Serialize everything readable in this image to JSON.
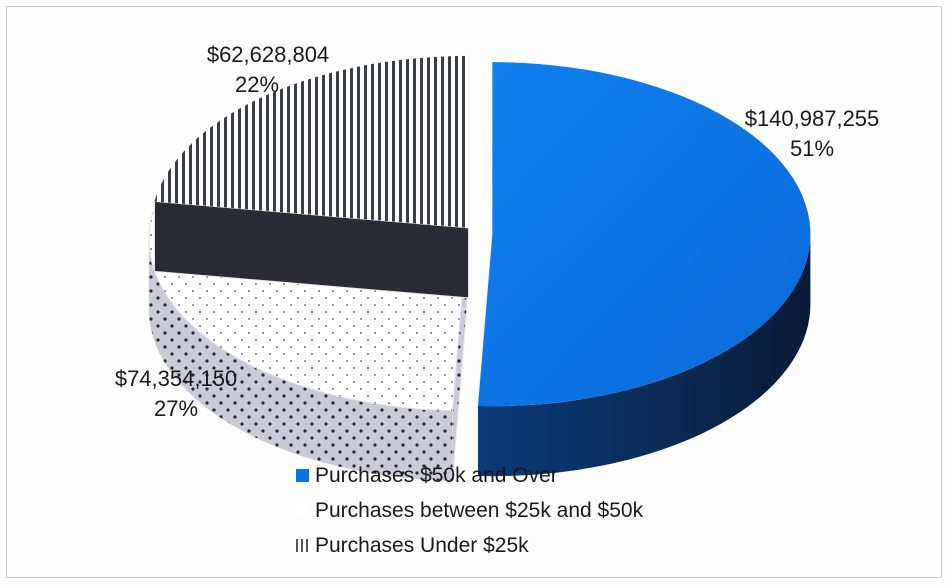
{
  "chart_data": {
    "type": "pie",
    "title": "",
    "slices": [
      {
        "name": "Purchases $50k and Over",
        "value": 140987255,
        "value_label": "$140,987,255",
        "percent_label": "51%",
        "color": "#0a73e6",
        "pattern": "solid"
      },
      {
        "name": "Purchases between $25k and $50k",
        "value": 74354150,
        "value_label": "$74,354,150",
        "percent_label": "27%",
        "color": "#ffffff",
        "pattern": "dots"
      },
      {
        "name": "Purchases Under $25k",
        "value": 62628804,
        "value_label": "$62,628,804",
        "percent_label": "22%",
        "color": "#3d3d45",
        "pattern": "vertical-stripes"
      }
    ],
    "legend_position": "bottom",
    "style": "3d-exploded"
  }
}
